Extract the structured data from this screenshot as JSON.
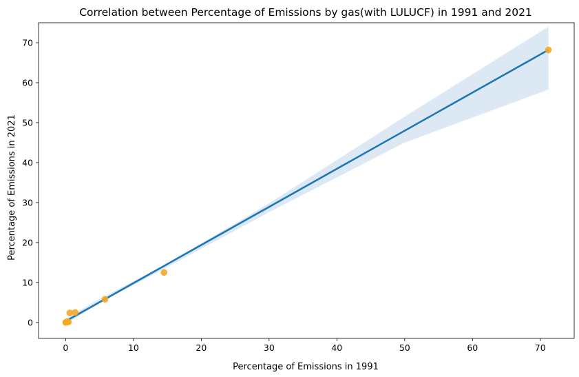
{
  "chart_data": {
    "type": "scatter",
    "title": "Correlation between Percentage of Emissions by gas(with LULUCF) in 1991 and 2021",
    "xlabel": "Percentage of Emissions in 1991",
    "ylabel": "Percentage of Emissions in 2021",
    "xlim": [
      -4,
      75
    ],
    "ylim": [
      -4,
      75
    ],
    "xticks": [
      0,
      10,
      20,
      30,
      40,
      50,
      60,
      70
    ],
    "yticks": [
      0,
      10,
      20,
      30,
      40,
      50,
      60,
      70
    ],
    "grid": false,
    "points": [
      {
        "x": 0.0,
        "y": 0.0
      },
      {
        "x": 0.1,
        "y": 0.1
      },
      {
        "x": 0.2,
        "y": 0.2
      },
      {
        "x": 0.4,
        "y": 0.1
      },
      {
        "x": 0.6,
        "y": 2.4
      },
      {
        "x": 1.4,
        "y": 2.5
      },
      {
        "x": 5.8,
        "y": 5.8
      },
      {
        "x": 14.5,
        "y": 12.5
      },
      {
        "x": 71.2,
        "y": 68.2
      }
    ],
    "regression": {
      "x": [
        0,
        71.2
      ],
      "y": [
        0.3,
        68.2
      ]
    },
    "confidence_band": {
      "x": [
        0,
        5,
        14.5,
        30,
        50,
        71.2
      ],
      "lower": [
        -0.4,
        4.9,
        13.4,
        27.6,
        45.0,
        58.3
      ],
      "upper": [
        0.9,
        5.9,
        14.3,
        29.8,
        51.5,
        74.0
      ]
    },
    "colors": {
      "points": "#f5a623",
      "line": "#1f77b4",
      "band": "#dce8f4"
    }
  }
}
